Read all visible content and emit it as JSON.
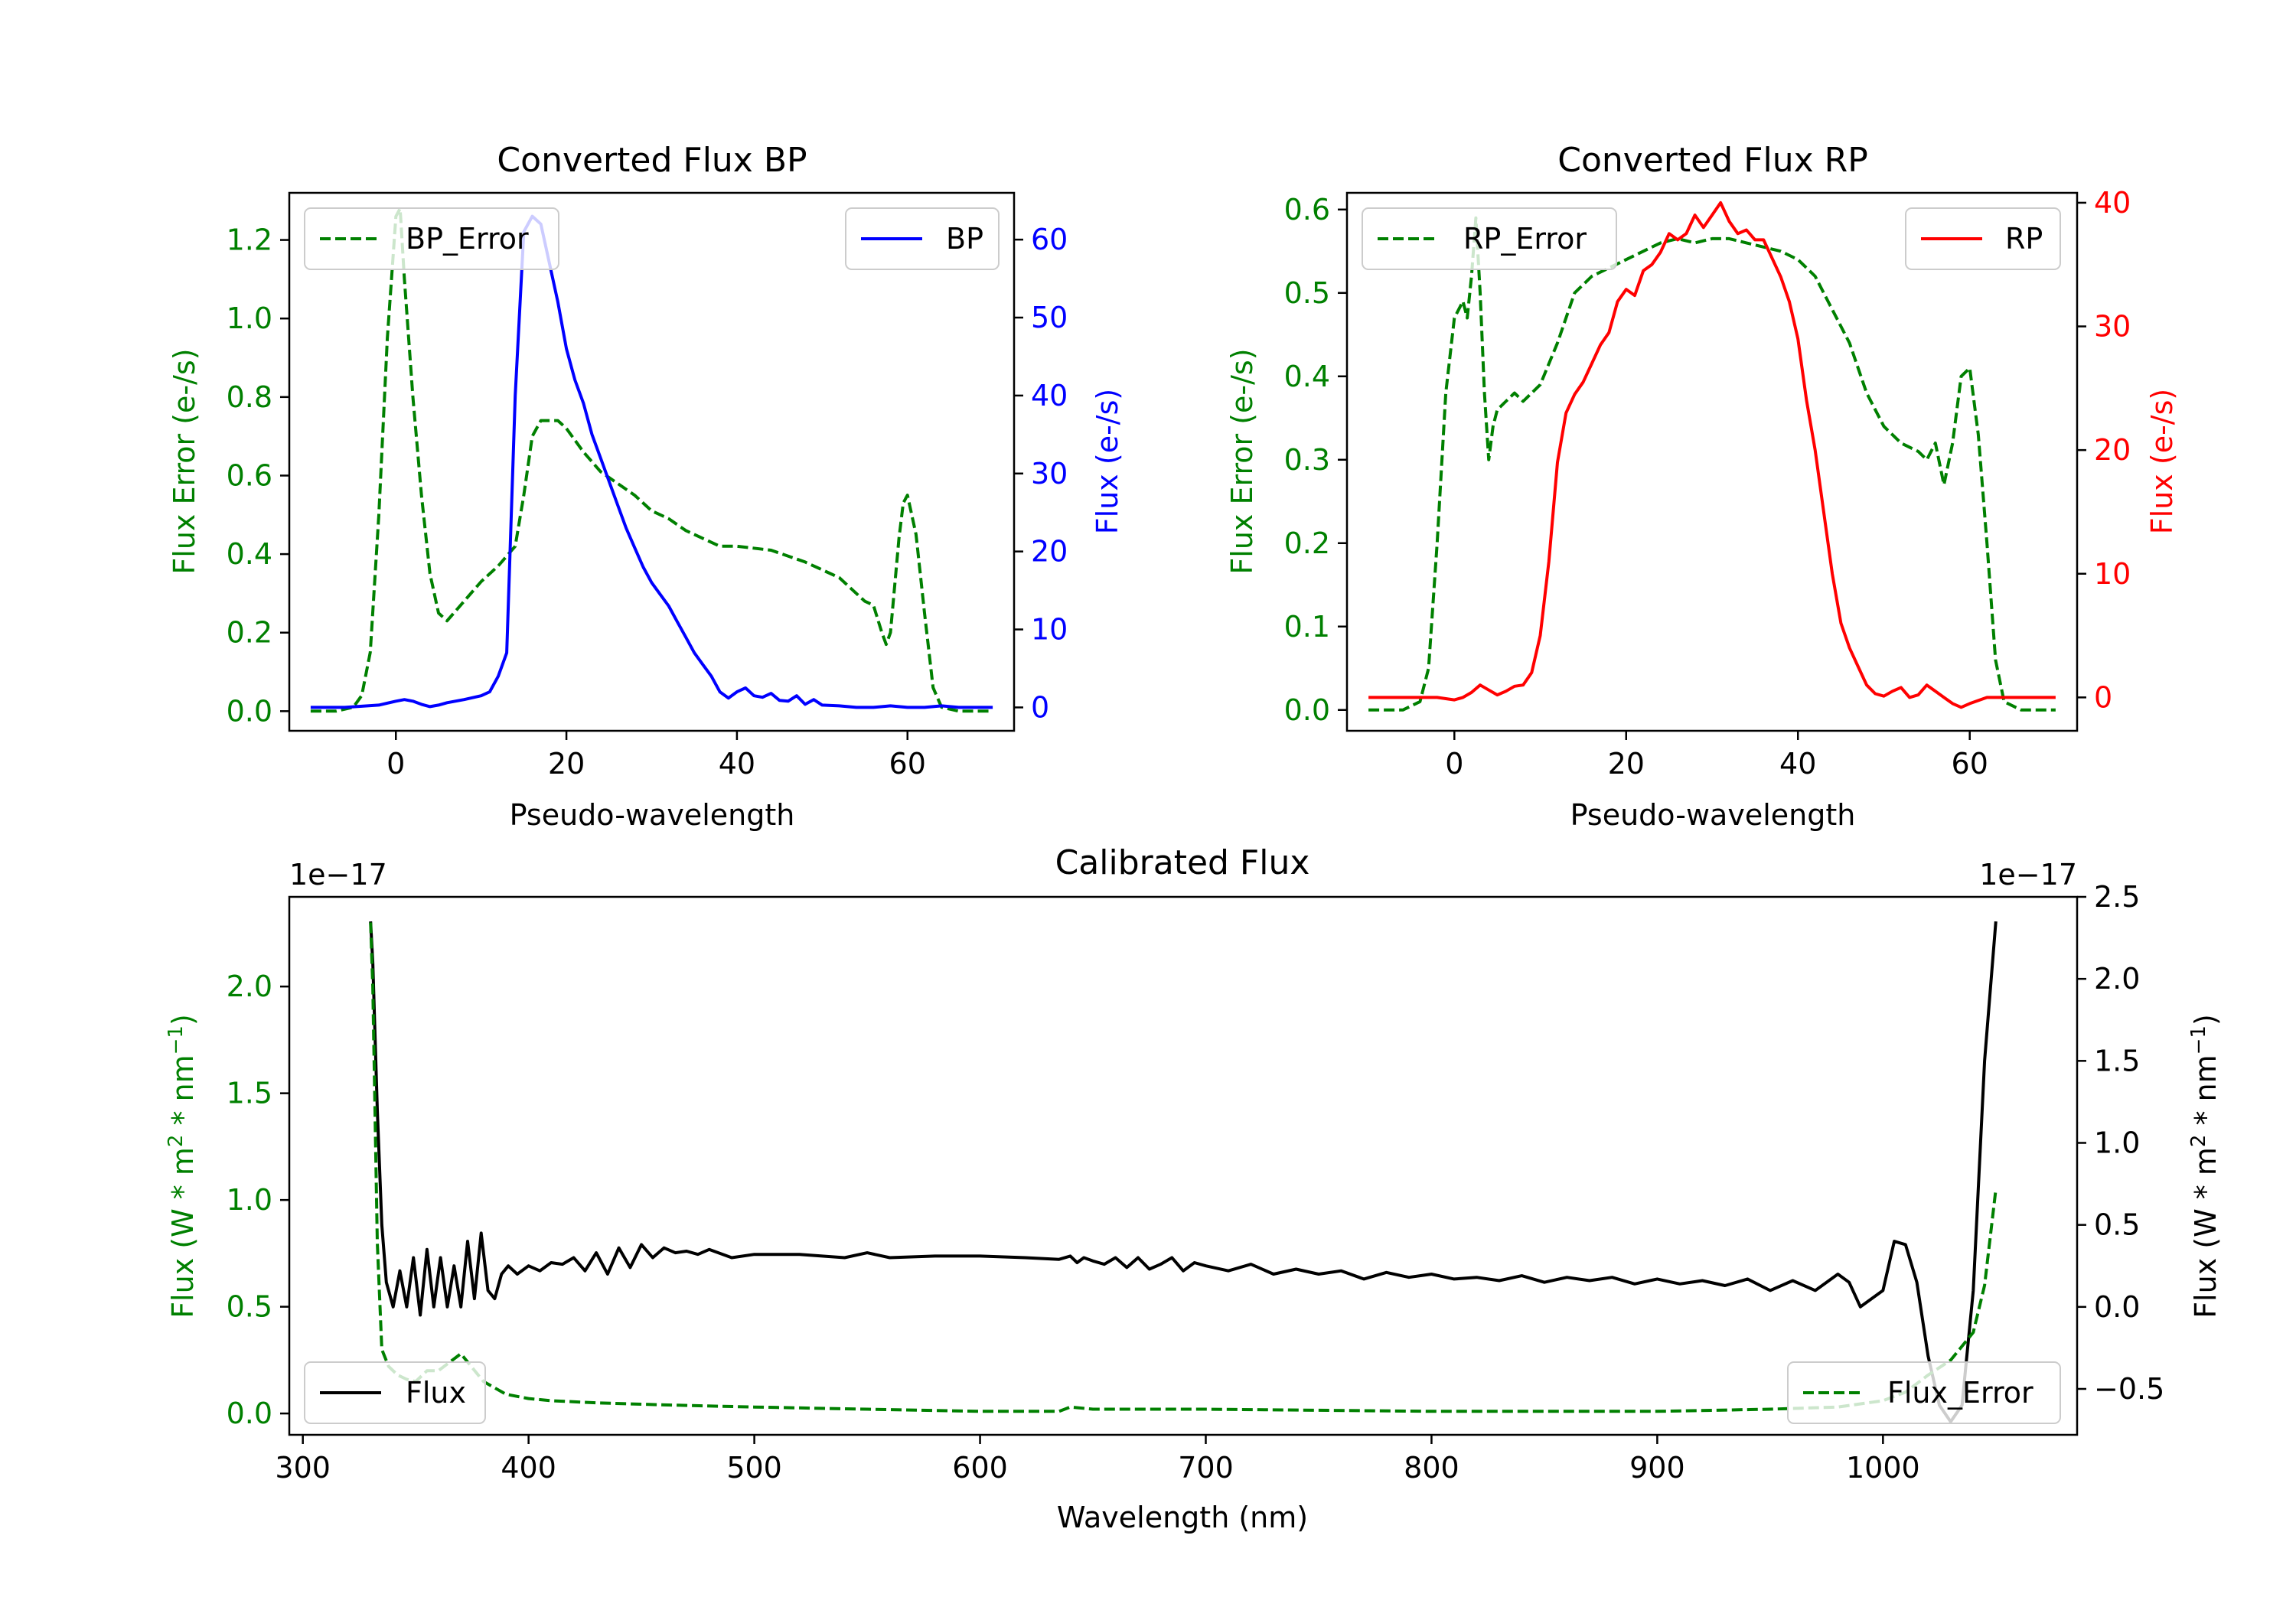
{
  "colors": {
    "green": "#008000",
    "blue": "#0000ff",
    "red": "#ff0000",
    "black": "#000000"
  },
  "chart_data": [
    {
      "type": "line",
      "title": "Converted Flux BP",
      "xlabel": "Pseudo-wavelength",
      "ylabel_left": "Flux Error (e-/s)",
      "ylabel_right": "Flux (e-/s)",
      "xlim": [
        -12.5,
        72.5
      ],
      "ylim_left": [
        -0.05,
        1.32
      ],
      "ylim_right": [
        -3,
        66
      ],
      "xticks": [
        0,
        20,
        40,
        60
      ],
      "yticks_left": [
        0.0,
        0.2,
        0.4,
        0.6,
        0.8,
        1.0,
        1.2
      ],
      "yticks_right": [
        0,
        10,
        20,
        30,
        40,
        50,
        60
      ],
      "xtick_labels": [
        "0",
        "20",
        "40",
        "60"
      ],
      "yticks_left_labels": [
        "0.0",
        "0.2",
        "0.4",
        "0.6",
        "0.8",
        "1.0",
        "1.2"
      ],
      "yticks_right_labels": [
        "0",
        "10",
        "20",
        "30",
        "40",
        "50",
        "60"
      ],
      "legend_left": {
        "label": "BP_Error",
        "position": "upper-left"
      },
      "legend_right": {
        "label": "BP",
        "position": "upper-right"
      },
      "series": [
        {
          "name": "BP_Error",
          "axis": "left",
          "style": "dashed",
          "color": "green",
          "x": [
            -10,
            -7,
            -5,
            -4,
            -3,
            -2,
            -1,
            0,
            0.5,
            1,
            2,
            3,
            4,
            5,
            6,
            8,
            10,
            12,
            14,
            15,
            16,
            17,
            18,
            19,
            20,
            22,
            24,
            26,
            28,
            30,
            32,
            34,
            36,
            38,
            40,
            44,
            48,
            52,
            55,
            56,
            57,
            57.5,
            58,
            59,
            59.5,
            60,
            61,
            62,
            63,
            64,
            66,
            68,
            70
          ],
          "y": [
            0,
            0,
            0.01,
            0.04,
            0.15,
            0.5,
            0.95,
            1.26,
            1.28,
            1.1,
            0.8,
            0.55,
            0.35,
            0.25,
            0.23,
            0.28,
            0.33,
            0.37,
            0.42,
            0.55,
            0.7,
            0.74,
            0.74,
            0.74,
            0.72,
            0.66,
            0.61,
            0.58,
            0.55,
            0.51,
            0.49,
            0.46,
            0.44,
            0.42,
            0.42,
            0.41,
            0.38,
            0.34,
            0.28,
            0.27,
            0.2,
            0.17,
            0.2,
            0.44,
            0.53,
            0.55,
            0.45,
            0.25,
            0.06,
            0.01,
            0,
            0,
            0
          ]
        },
        {
          "name": "BP",
          "axis": "right",
          "style": "solid",
          "color": "blue",
          "x": [
            -10,
            -6,
            -2,
            0,
            1,
            2,
            3,
            4,
            5,
            6,
            8,
            10,
            11,
            12,
            13,
            14,
            15,
            16,
            17,
            18,
            19,
            20,
            21,
            22,
            23,
            24,
            25,
            26,
            27,
            28,
            29,
            30,
            31,
            32,
            33,
            34,
            35,
            36,
            37,
            38,
            39,
            40,
            41,
            42,
            43,
            44,
            45,
            46,
            47,
            48,
            49,
            50,
            52,
            54,
            56,
            58,
            60,
            62,
            64,
            66,
            68,
            70
          ],
          "y": [
            0,
            0,
            0.3,
            0.8,
            1,
            0.8,
            0.4,
            0.1,
            0.3,
            0.6,
            1,
            1.5,
            2,
            4,
            7,
            40,
            61,
            63,
            62,
            57,
            52,
            46,
            42,
            39,
            35,
            32,
            29,
            26,
            23,
            20.5,
            18,
            16,
            14.5,
            13,
            11,
            9,
            7,
            5.5,
            4,
            2,
            1.2,
            2,
            2.5,
            1.5,
            1.3,
            1.8,
            0.9,
            0.8,
            1.5,
            0.4,
            1,
            0.3,
            0.2,
            0,
            0,
            0.2,
            0,
            0,
            0.2,
            0,
            0,
            0
          ]
        }
      ]
    },
    {
      "type": "line",
      "title": "Converted Flux RP",
      "xlabel": "Pseudo-wavelength",
      "ylabel_left": "Flux Error (e-/s)",
      "ylabel_right": "Flux (e-/s)",
      "xlim": [
        -12.5,
        72.5
      ],
      "ylim_left": [
        -0.025,
        0.62
      ],
      "ylim_right": [
        -2.7,
        40.8
      ],
      "xticks": [
        0,
        20,
        40,
        60
      ],
      "yticks_left": [
        0.0,
        0.1,
        0.2,
        0.3,
        0.4,
        0.5,
        0.6
      ],
      "yticks_right": [
        0,
        10,
        20,
        30,
        40
      ],
      "xtick_labels": [
        "0",
        "20",
        "40",
        "60"
      ],
      "yticks_left_labels": [
        "0.0",
        "0.1",
        "0.2",
        "0.3",
        "0.4",
        "0.5",
        "0.6"
      ],
      "yticks_right_labels": [
        "0",
        "10",
        "20",
        "30",
        "40"
      ],
      "legend_left": {
        "label": "RP_Error",
        "position": "upper-left"
      },
      "legend_right": {
        "label": "RP",
        "position": "upper-right"
      },
      "series": [
        {
          "name": "RP_Error",
          "axis": "left",
          "style": "dashed",
          "color": "green",
          "x": [
            -10,
            -6,
            -4,
            -3,
            -2,
            -1,
            0,
            1,
            1.5,
            2,
            2.5,
            3,
            3.5,
            4,
            4.5,
            5,
            6,
            7,
            8,
            10,
            12,
            14,
            16,
            18,
            20,
            22,
            24,
            26,
            28,
            30,
            32,
            34,
            36,
            38,
            40,
            42,
            44,
            46,
            48,
            50,
            52,
            54,
            55,
            56,
            57,
            58,
            59,
            60,
            61,
            62,
            63,
            64,
            66,
            68,
            70
          ],
          "y": [
            0,
            0,
            0.01,
            0.05,
            0.2,
            0.38,
            0.47,
            0.49,
            0.47,
            0.52,
            0.59,
            0.5,
            0.38,
            0.3,
            0.34,
            0.36,
            0.37,
            0.38,
            0.37,
            0.39,
            0.44,
            0.5,
            0.52,
            0.53,
            0.54,
            0.55,
            0.56,
            0.565,
            0.56,
            0.565,
            0.565,
            0.56,
            0.555,
            0.55,
            0.54,
            0.52,
            0.48,
            0.44,
            0.38,
            0.34,
            0.32,
            0.31,
            0.3,
            0.32,
            0.27,
            0.32,
            0.4,
            0.41,
            0.33,
            0.2,
            0.06,
            0.01,
            0,
            0,
            0
          ]
        },
        {
          "name": "RP",
          "axis": "right",
          "style": "solid",
          "color": "red",
          "x": [
            -10,
            -6,
            -2,
            0,
            1,
            2,
            3,
            4,
            5,
            6,
            7,
            8,
            9,
            10,
            11,
            12,
            13,
            14,
            15,
            16,
            17,
            18,
            19,
            20,
            21,
            22,
            23,
            24,
            25,
            26,
            27,
            28,
            29,
            30,
            31,
            32,
            33,
            34,
            35,
            36,
            37,
            38,
            39,
            40,
            41,
            42,
            43,
            44,
            45,
            46,
            47,
            48,
            49,
            50,
            51,
            52,
            53,
            54,
            55,
            56,
            57,
            58,
            59,
            60,
            62,
            64,
            66,
            68,
            70
          ],
          "y": [
            0,
            0,
            0,
            -0.2,
            0,
            0.4,
            1,
            0.6,
            0.2,
            0.5,
            0.9,
            1,
            2,
            5,
            11,
            19,
            23,
            24.5,
            25.5,
            27,
            28.5,
            29.5,
            32,
            33,
            32.5,
            34.5,
            35,
            36,
            37.5,
            37,
            37.5,
            39,
            38,
            39,
            40,
            38.5,
            37.5,
            37.8,
            37,
            37,
            35.5,
            34,
            32,
            29,
            24,
            20,
            15,
            10,
            6,
            4,
            2.5,
            1,
            0.3,
            0.1,
            0.5,
            0.8,
            0,
            0.2,
            1,
            0.5,
            0,
            -0.5,
            -0.8,
            -0.5,
            0,
            0,
            0,
            0,
            0
          ]
        }
      ]
    },
    {
      "type": "line",
      "title": "Calibrated Flux",
      "xlabel": "Wavelength (nm)",
      "ylabel_left": "Flux (W * m^2 * nm^-1)",
      "ylabel_right": "Flux (W * m^2 * nm^-1)",
      "offset_left": "1e−17",
      "offset_right": "1e−17",
      "xlim": [
        294,
        1086
      ],
      "ylim_left": [
        -0.1,
        2.42
      ],
      "ylim_right": [
        -0.78,
        2.5
      ],
      "xticks": [
        300,
        400,
        500,
        600,
        700,
        800,
        900,
        1000
      ],
      "yticks_left": [
        0.0,
        0.5,
        1.0,
        1.5,
        2.0
      ],
      "yticks_right": [
        -0.5,
        0.0,
        0.5,
        1.0,
        1.5,
        2.0,
        2.5
      ],
      "xtick_labels": [
        "300",
        "400",
        "500",
        "600",
        "700",
        "800",
        "900",
        "1000"
      ],
      "yticks_left_labels": [
        "0.0",
        "0.5",
        "1.0",
        "1.5",
        "2.0"
      ],
      "yticks_right_labels": [
        "−0.5",
        "0.0",
        "0.5",
        "1.0",
        "1.5",
        "2.0",
        "2.5"
      ],
      "legend_left": {
        "label": "Flux",
        "position": "lower-left"
      },
      "legend_right": {
        "label": "Flux_Error",
        "position": "lower-right"
      },
      "series": [
        {
          "name": "Flux",
          "axis": "right",
          "style": "solid",
          "color": "black",
          "x": [
            330,
            331,
            333,
            335,
            337,
            340,
            343,
            346,
            349,
            352,
            355,
            358,
            361,
            364,
            367,
            370,
            373,
            376,
            379,
            382,
            385,
            388,
            391,
            395,
            400,
            405,
            410,
            415,
            420,
            425,
            430,
            435,
            440,
            445,
            450,
            455,
            460,
            465,
            470,
            475,
            480,
            490,
            500,
            520,
            540,
            550,
            560,
            580,
            600,
            620,
            635,
            640,
            643,
            646,
            650,
            655,
            660,
            665,
            670,
            675,
            680,
            685,
            690,
            695,
            700,
            710,
            720,
            730,
            740,
            750,
            760,
            770,
            780,
            790,
            800,
            810,
            820,
            830,
            840,
            850,
            860,
            870,
            880,
            890,
            900,
            910,
            920,
            930,
            940,
            950,
            960,
            970,
            975,
            980,
            985,
            990,
            1000,
            1005,
            1010,
            1015,
            1020,
            1025,
            1030,
            1035,
            1040,
            1045,
            1050
          ],
          "y": [
            2.35,
            2.1,
            1.2,
            0.5,
            0.15,
            0.0,
            0.22,
            0.0,
            0.3,
            -0.05,
            0.35,
            0.0,
            0.3,
            0.0,
            0.25,
            0.0,
            0.4,
            0.05,
            0.45,
            0.1,
            0.05,
            0.2,
            0.25,
            0.2,
            0.25,
            0.22,
            0.27,
            0.26,
            0.3,
            0.22,
            0.33,
            0.2,
            0.36,
            0.24,
            0.38,
            0.3,
            0.36,
            0.33,
            0.34,
            0.32,
            0.35,
            0.3,
            0.32,
            0.32,
            0.3,
            0.33,
            0.3,
            0.31,
            0.31,
            0.3,
            0.29,
            0.31,
            0.27,
            0.3,
            0.28,
            0.26,
            0.3,
            0.24,
            0.3,
            0.23,
            0.26,
            0.3,
            0.22,
            0.27,
            0.25,
            0.22,
            0.26,
            0.2,
            0.23,
            0.2,
            0.22,
            0.17,
            0.21,
            0.18,
            0.2,
            0.17,
            0.18,
            0.16,
            0.19,
            0.15,
            0.18,
            0.16,
            0.18,
            0.14,
            0.17,
            0.14,
            0.16,
            0.13,
            0.17,
            0.1,
            0.16,
            0.1,
            0.15,
            0.2,
            0.15,
            0.0,
            0.1,
            0.4,
            0.38,
            0.15,
            -0.3,
            -0.6,
            -0.7,
            -0.6,
            0.1,
            1.5,
            2.35
          ]
        },
        {
          "name": "Flux_Error",
          "axis": "left",
          "style": "dashed",
          "color": "green",
          "x": [
            330,
            331,
            333,
            335,
            338,
            342,
            346,
            350,
            355,
            360,
            370,
            380,
            390,
            400,
            410,
            430,
            460,
            500,
            550,
            600,
            635,
            640,
            650,
            700,
            800,
            900,
            950,
            980,
            1000,
            1010,
            1020,
            1030,
            1040,
            1045,
            1050
          ],
          "y": [
            2.3,
            2.0,
            0.8,
            0.3,
            0.22,
            0.18,
            0.16,
            0.15,
            0.2,
            0.2,
            0.28,
            0.15,
            0.09,
            0.07,
            0.06,
            0.05,
            0.04,
            0.03,
            0.02,
            0.01,
            0.01,
            0.03,
            0.02,
            0.02,
            0.01,
            0.01,
            0.02,
            0.03,
            0.06,
            0.1,
            0.18,
            0.25,
            0.38,
            0.6,
            1.05
          ]
        }
      ]
    }
  ]
}
